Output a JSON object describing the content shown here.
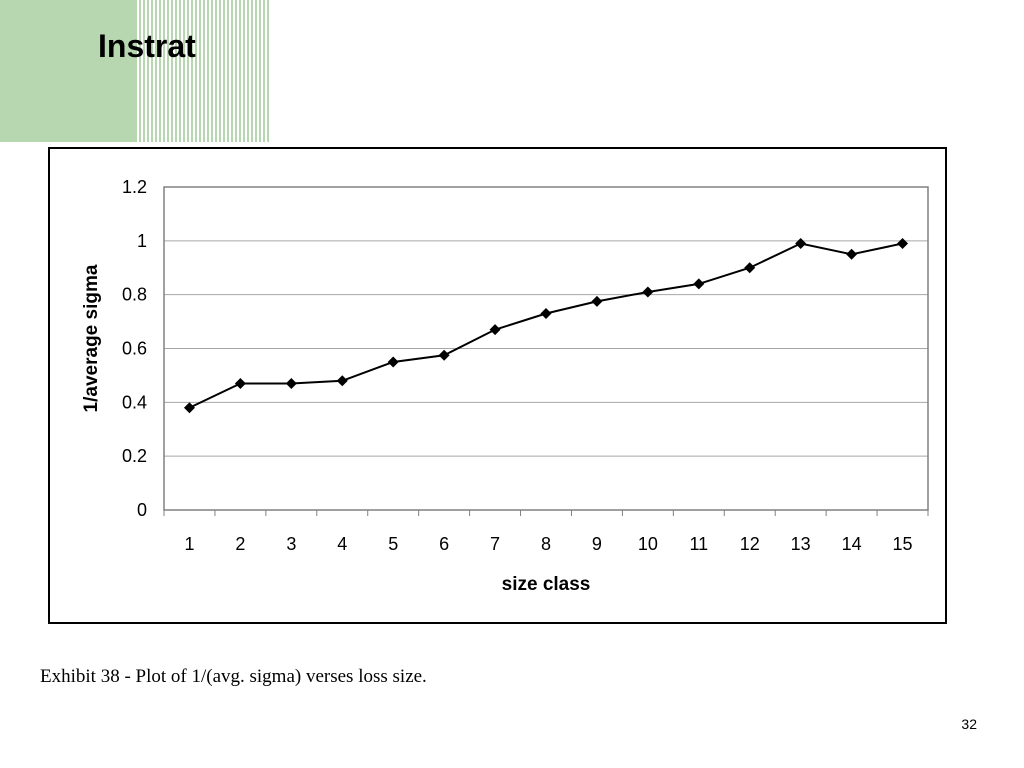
{
  "slide": {
    "title": "Instrat",
    "caption": "Exhibit 38 - Plot of 1/(avg. sigma) verses loss size.",
    "page_number": "32",
    "accent_color": "#b7d7b1"
  },
  "chart_data": {
    "type": "line",
    "title": "",
    "xlabel": "size class",
    "ylabel": "1/average sigma",
    "categories": [
      "1",
      "2",
      "3",
      "4",
      "5",
      "6",
      "7",
      "8",
      "9",
      "10",
      "11",
      "12",
      "13",
      "14",
      "15"
    ],
    "values": [
      0.38,
      0.47,
      0.47,
      0.48,
      0.55,
      0.575,
      0.67,
      0.73,
      0.775,
      0.81,
      0.84,
      0.9,
      0.99,
      0.95,
      0.99
    ],
    "ylim": [
      0,
      1.2
    ],
    "yticks": [
      "0",
      "0.2",
      "0.4",
      "0.6",
      "0.8",
      "1",
      "1.2"
    ],
    "grid": true,
    "legend": "none",
    "marker": "diamond",
    "line_color": "#000000",
    "grid_color": "#a6a6a6"
  }
}
